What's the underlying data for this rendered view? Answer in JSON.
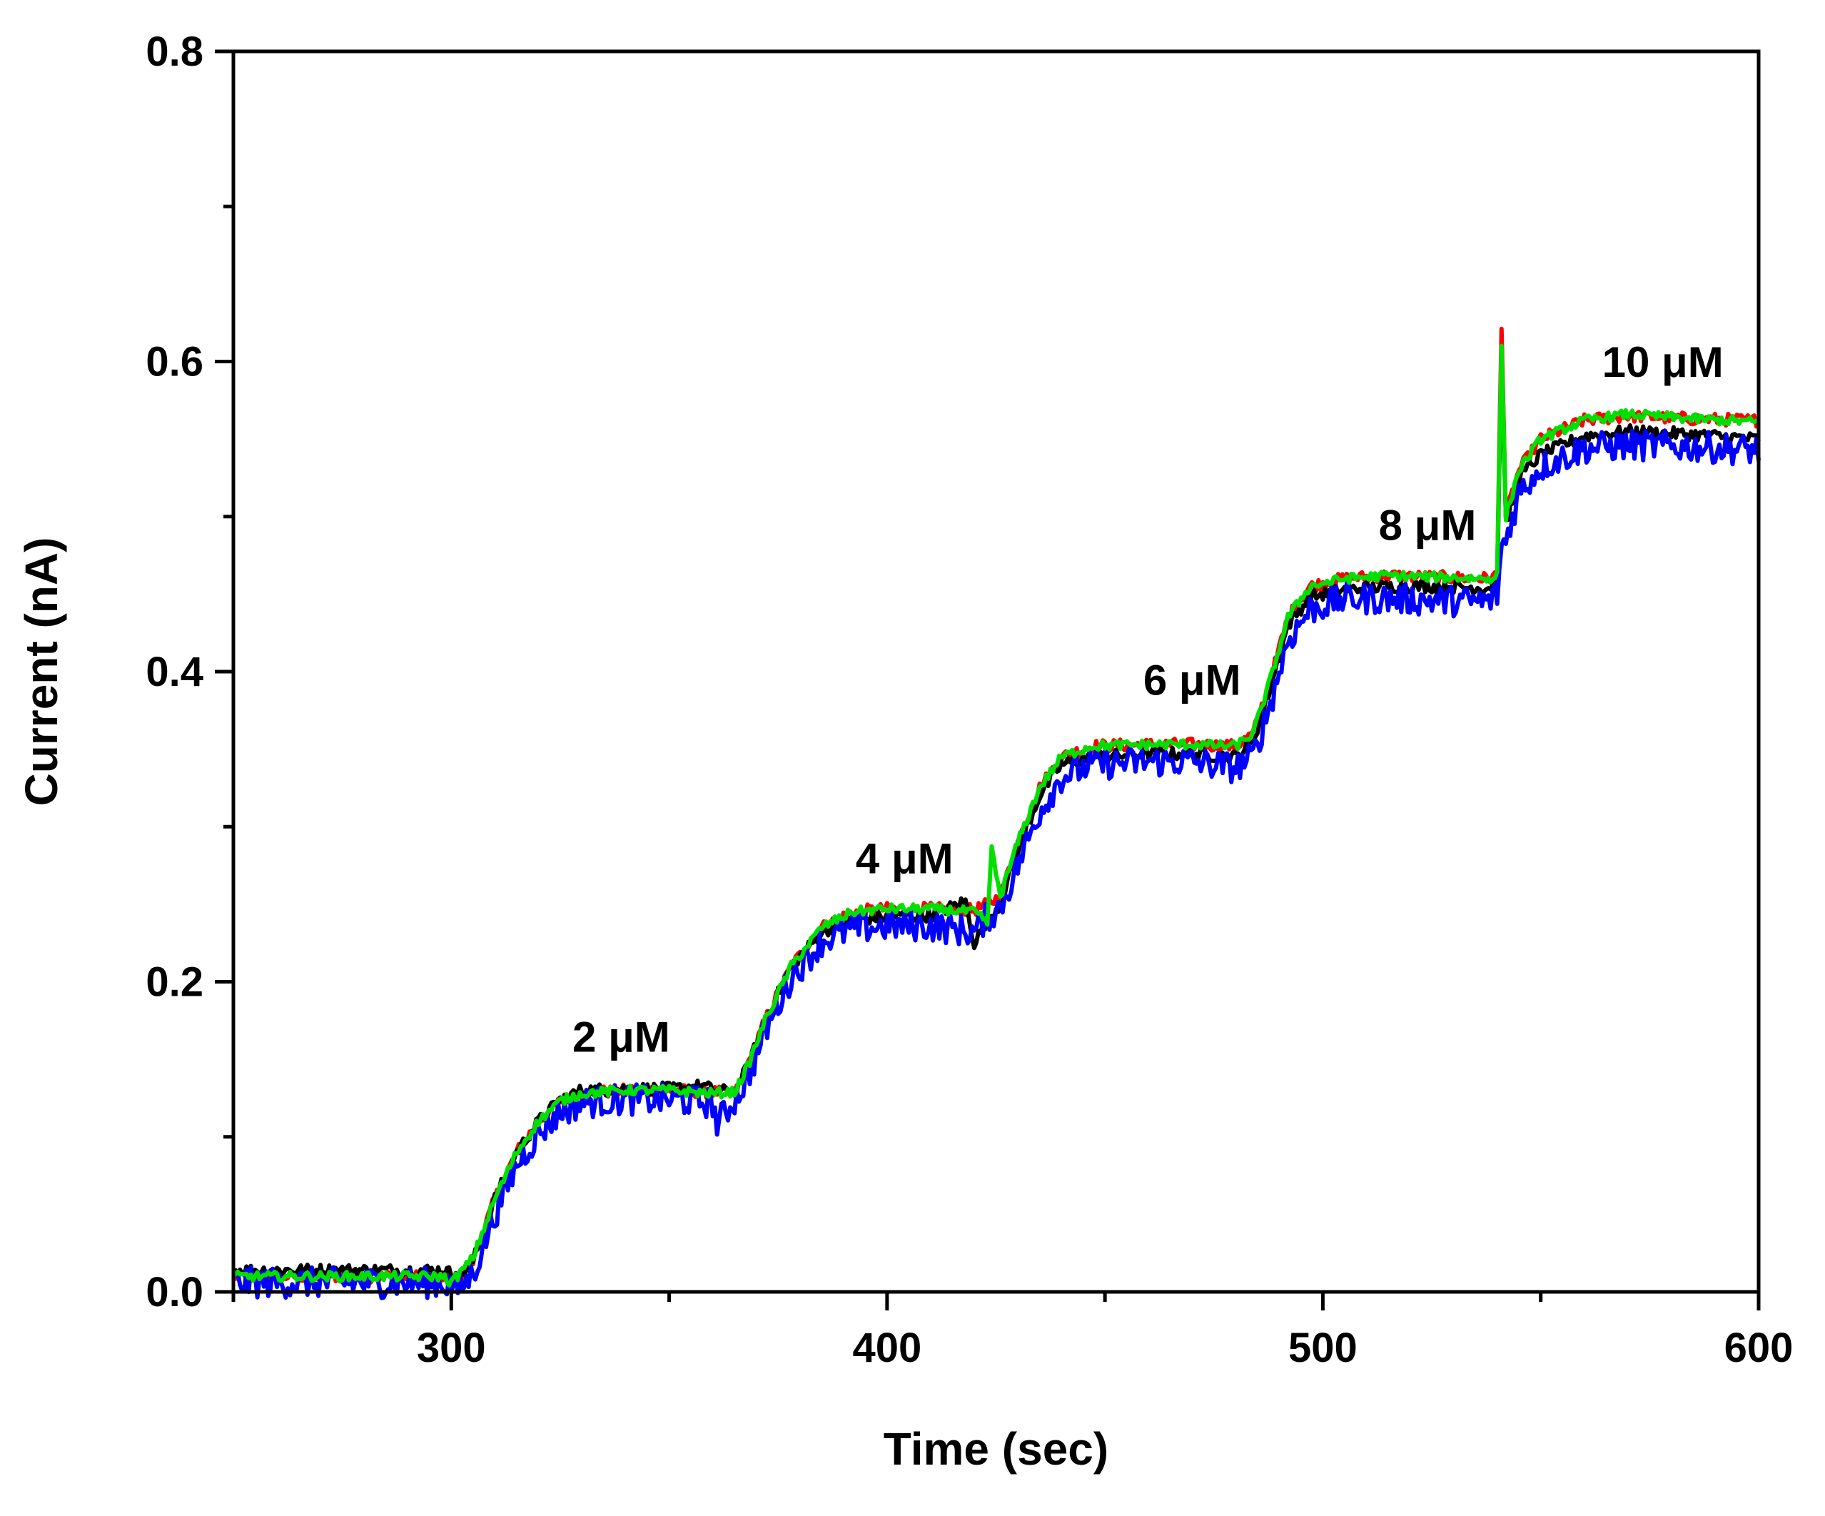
{
  "chart_data": {
    "type": "line",
    "title": "",
    "xlabel": "Time (sec)",
    "ylabel": "Current (nA)",
    "xlim": [
      250,
      600
    ],
    "ylim": [
      0.0,
      0.8
    ],
    "x_ticks": [
      300,
      400,
      500,
      600
    ],
    "x_tick_labels": [
      "300",
      "400",
      "500",
      "600"
    ],
    "x_minor_ticks": [
      250,
      350,
      450,
      550
    ],
    "y_ticks": [
      0.0,
      0.2,
      0.4,
      0.6,
      0.8
    ],
    "y_tick_labels": [
      "0.0",
      "0.2",
      "0.4",
      "0.6",
      "0.8"
    ],
    "y_minor_ticks": [
      0.1,
      0.3,
      0.5,
      0.7
    ],
    "grid": false,
    "legend": "none",
    "series": [
      {
        "name": "red trace",
        "color": "#ff0000",
        "noise": 0.004,
        "points": [
          [
            250,
            0.01
          ],
          [
            298,
            0.01
          ],
          [
            302,
            0.008
          ],
          [
            305,
            0.02
          ],
          [
            310,
            0.06
          ],
          [
            315,
            0.09
          ],
          [
            320,
            0.11
          ],
          [
            325,
            0.123
          ],
          [
            330,
            0.128
          ],
          [
            340,
            0.13
          ],
          [
            350,
            0.13
          ],
          [
            360,
            0.129
          ],
          [
            365,
            0.128
          ],
          [
            368,
            0.145
          ],
          [
            372,
            0.175
          ],
          [
            378,
            0.21
          ],
          [
            385,
            0.235
          ],
          [
            392,
            0.245
          ],
          [
            400,
            0.247
          ],
          [
            410,
            0.247
          ],
          [
            420,
            0.246
          ],
          [
            423,
            0.25
          ],
          [
            426,
            0.255
          ],
          [
            430,
            0.29
          ],
          [
            435,
            0.325
          ],
          [
            440,
            0.345
          ],
          [
            447,
            0.352
          ],
          [
            460,
            0.353
          ],
          [
            470,
            0.353
          ],
          [
            480,
            0.352
          ],
          [
            484,
            0.36
          ],
          [
            488,
            0.395
          ],
          [
            492,
            0.435
          ],
          [
            497,
            0.455
          ],
          [
            505,
            0.46
          ],
          [
            515,
            0.462
          ],
          [
            525,
            0.461
          ],
          [
            538,
            0.46
          ],
          [
            540,
            0.462
          ],
          [
            541,
            0.625
          ],
          [
            542,
            0.5
          ],
          [
            545,
            0.53
          ],
          [
            550,
            0.55
          ],
          [
            560,
            0.562
          ],
          [
            570,
            0.565
          ],
          [
            585,
            0.563
          ],
          [
            600,
            0.562
          ]
        ]
      },
      {
        "name": "black trace",
        "color": "#000000",
        "noise": 0.004,
        "points": [
          [
            250,
            0.014
          ],
          [
            298,
            0.014
          ],
          [
            302,
            0.01
          ],
          [
            305,
            0.02
          ],
          [
            310,
            0.06
          ],
          [
            315,
            0.09
          ],
          [
            320,
            0.11
          ],
          [
            325,
            0.124
          ],
          [
            330,
            0.13
          ],
          [
            340,
            0.131
          ],
          [
            350,
            0.131
          ],
          [
            358,
            0.133
          ],
          [
            360,
            0.13
          ],
          [
            365,
            0.129
          ],
          [
            368,
            0.145
          ],
          [
            372,
            0.175
          ],
          [
            378,
            0.21
          ],
          [
            385,
            0.232
          ],
          [
            392,
            0.24
          ],
          [
            400,
            0.242
          ],
          [
            410,
            0.243
          ],
          [
            418,
            0.252
          ],
          [
            420,
            0.225
          ],
          [
            423,
            0.24
          ],
          [
            426,
            0.25
          ],
          [
            430,
            0.285
          ],
          [
            435,
            0.32
          ],
          [
            440,
            0.34
          ],
          [
            447,
            0.345
          ],
          [
            460,
            0.347
          ],
          [
            470,
            0.347
          ],
          [
            480,
            0.345
          ],
          [
            484,
            0.355
          ],
          [
            488,
            0.39
          ],
          [
            492,
            0.43
          ],
          [
            497,
            0.448
          ],
          [
            505,
            0.453
          ],
          [
            515,
            0.455
          ],
          [
            525,
            0.455
          ],
          [
            538,
            0.454
          ],
          [
            540,
            0.46
          ],
          [
            541,
            0.6
          ],
          [
            542,
            0.495
          ],
          [
            545,
            0.525
          ],
          [
            550,
            0.54
          ],
          [
            560,
            0.552
          ],
          [
            570,
            0.555
          ],
          [
            585,
            0.553
          ],
          [
            600,
            0.55
          ]
        ]
      },
      {
        "name": "blue trace",
        "color": "#0000ff",
        "noise": 0.01,
        "points": [
          [
            250,
            0.006
          ],
          [
            298,
            0.006
          ],
          [
            302,
            0.002
          ],
          [
            305,
            0.012
          ],
          [
            310,
            0.05
          ],
          [
            315,
            0.082
          ],
          [
            320,
            0.102
          ],
          [
            325,
            0.116
          ],
          [
            330,
            0.122
          ],
          [
            340,
            0.124
          ],
          [
            350,
            0.124
          ],
          [
            360,
            0.122
          ],
          [
            361,
            0.108
          ],
          [
            365,
            0.124
          ],
          [
            368,
            0.138
          ],
          [
            372,
            0.168
          ],
          [
            378,
            0.203
          ],
          [
            385,
            0.226
          ],
          [
            392,
            0.234
          ],
          [
            400,
            0.236
          ],
          [
            410,
            0.236
          ],
          [
            420,
            0.232
          ],
          [
            423,
            0.242
          ],
          [
            426,
            0.248
          ],
          [
            430,
            0.275
          ],
          [
            435,
            0.31
          ],
          [
            440,
            0.332
          ],
          [
            447,
            0.34
          ],
          [
            460,
            0.342
          ],
          [
            470,
            0.342
          ],
          [
            480,
            0.338
          ],
          [
            484,
            0.345
          ],
          [
            488,
            0.38
          ],
          [
            492,
            0.42
          ],
          [
            497,
            0.44
          ],
          [
            505,
            0.447
          ],
          [
            515,
            0.447
          ],
          [
            525,
            0.446
          ],
          [
            538,
            0.445
          ],
          [
            540,
            0.45
          ],
          [
            541,
            0.48
          ],
          [
            542,
            0.485
          ],
          [
            545,
            0.515
          ],
          [
            550,
            0.532
          ],
          [
            560,
            0.544
          ],
          [
            570,
            0.546
          ],
          [
            585,
            0.545
          ],
          [
            600,
            0.543
          ]
        ]
      },
      {
        "name": "green trace",
        "color": "#00e000",
        "noise": 0.003,
        "points": [
          [
            250,
            0.01
          ],
          [
            298,
            0.01
          ],
          [
            300,
            0.006
          ],
          [
            302,
            0.012
          ],
          [
            305,
            0.022
          ],
          [
            310,
            0.06
          ],
          [
            315,
            0.09
          ],
          [
            320,
            0.11
          ],
          [
            325,
            0.123
          ],
          [
            330,
            0.128
          ],
          [
            340,
            0.13
          ],
          [
            350,
            0.13
          ],
          [
            360,
            0.128
          ],
          [
            365,
            0.129
          ],
          [
            368,
            0.145
          ],
          [
            372,
            0.175
          ],
          [
            378,
            0.21
          ],
          [
            385,
            0.235
          ],
          [
            392,
            0.245
          ],
          [
            400,
            0.247
          ],
          [
            410,
            0.247
          ],
          [
            420,
            0.245
          ],
          [
            423,
            0.238
          ],
          [
            424,
            0.285
          ],
          [
            426,
            0.255
          ],
          [
            430,
            0.29
          ],
          [
            435,
            0.325
          ],
          [
            440,
            0.345
          ],
          [
            447,
            0.352
          ],
          [
            460,
            0.353
          ],
          [
            470,
            0.353
          ],
          [
            480,
            0.352
          ],
          [
            484,
            0.36
          ],
          [
            488,
            0.395
          ],
          [
            492,
            0.435
          ],
          [
            497,
            0.455
          ],
          [
            505,
            0.46
          ],
          [
            515,
            0.462
          ],
          [
            525,
            0.461
          ],
          [
            538,
            0.46
          ],
          [
            540,
            0.462
          ],
          [
            541,
            0.612
          ],
          [
            542,
            0.5
          ],
          [
            545,
            0.53
          ],
          [
            550,
            0.55
          ],
          [
            560,
            0.562
          ],
          [
            570,
            0.566
          ],
          [
            585,
            0.563
          ],
          [
            600,
            0.561
          ]
        ]
      }
    ],
    "annotations": [
      {
        "text": "2 μM",
        "x": 339,
        "y": 0.155
      },
      {
        "text": "4 μM",
        "x": 404,
        "y": 0.27
      },
      {
        "text": "6 μM",
        "x": 470,
        "y": 0.385
      },
      {
        "text": "8 μM",
        "x": 524,
        "y": 0.485
      },
      {
        "text": "10 μM",
        "x": 578,
        "y": 0.59
      }
    ]
  }
}
